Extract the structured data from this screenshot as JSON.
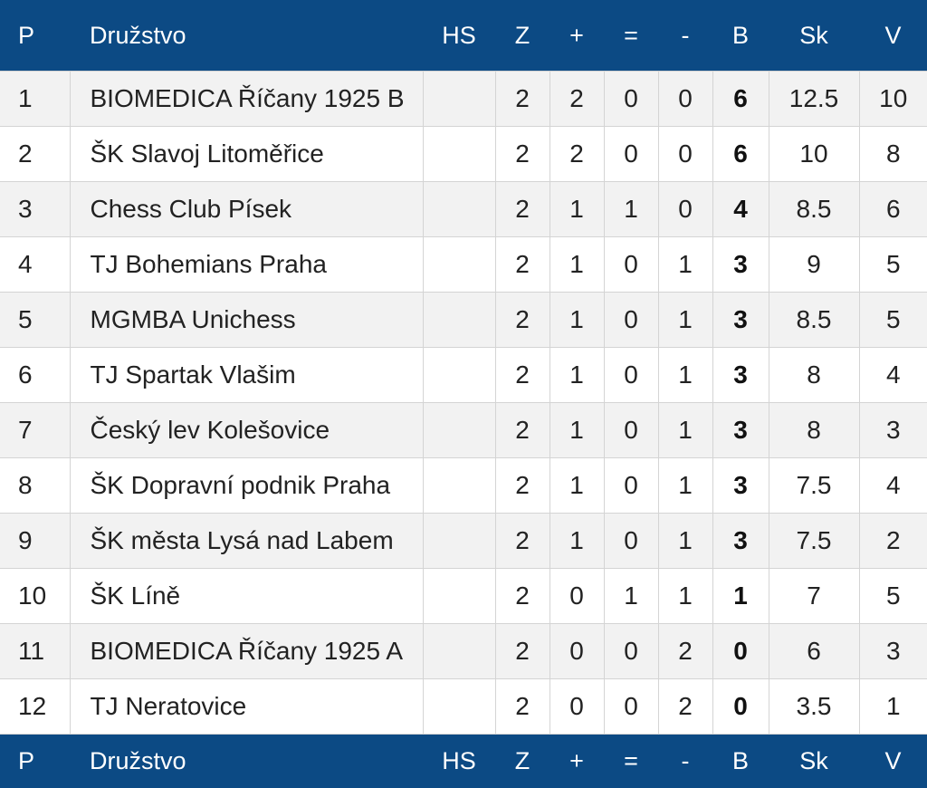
{
  "header": {
    "p": "P",
    "team": "Družstvo",
    "hs": "HS",
    "z": "Z",
    "plus": "+",
    "eq": "=",
    "minus": "-",
    "b": "B",
    "sk": "Sk",
    "v": "V"
  },
  "rows": [
    {
      "p": "1",
      "team": "BIOMEDICA Říčany 1925 B",
      "hs": "",
      "z": "2",
      "plus": "2",
      "eq": "0",
      "minus": "0",
      "b": "6",
      "sk": "12.5",
      "v": "10"
    },
    {
      "p": "2",
      "team": "ŠK Slavoj Litoměřice",
      "hs": "",
      "z": "2",
      "plus": "2",
      "eq": "0",
      "minus": "0",
      "b": "6",
      "sk": "10",
      "v": "8"
    },
    {
      "p": "3",
      "team": "Chess Club Písek",
      "hs": "",
      "z": "2",
      "plus": "1",
      "eq": "1",
      "minus": "0",
      "b": "4",
      "sk": "8.5",
      "v": "6"
    },
    {
      "p": "4",
      "team": "TJ Bohemians Praha",
      "hs": "",
      "z": "2",
      "plus": "1",
      "eq": "0",
      "minus": "1",
      "b": "3",
      "sk": "9",
      "v": "5"
    },
    {
      "p": "5",
      "team": "MGMBA Unichess",
      "hs": "",
      "z": "2",
      "plus": "1",
      "eq": "0",
      "minus": "1",
      "b": "3",
      "sk": "8.5",
      "v": "5"
    },
    {
      "p": "6",
      "team": "TJ Spartak Vlašim",
      "hs": "",
      "z": "2",
      "plus": "1",
      "eq": "0",
      "minus": "1",
      "b": "3",
      "sk": "8",
      "v": "4"
    },
    {
      "p": "7",
      "team": "Český lev Kolešovice",
      "hs": "",
      "z": "2",
      "plus": "1",
      "eq": "0",
      "minus": "1",
      "b": "3",
      "sk": "8",
      "v": "3"
    },
    {
      "p": "8",
      "team": "ŠK Dopravní podnik Praha",
      "hs": "",
      "z": "2",
      "plus": "1",
      "eq": "0",
      "minus": "1",
      "b": "3",
      "sk": "7.5",
      "v": "4"
    },
    {
      "p": "9",
      "team": "ŠK města Lysá nad Labem",
      "hs": "",
      "z": "2",
      "plus": "1",
      "eq": "0",
      "minus": "1",
      "b": "3",
      "sk": "7.5",
      "v": "2"
    },
    {
      "p": "10",
      "team": "ŠK Líně",
      "hs": "",
      "z": "2",
      "plus": "0",
      "eq": "1",
      "minus": "1",
      "b": "1",
      "sk": "7",
      "v": "5"
    },
    {
      "p": "11",
      "team": "BIOMEDICA Říčany 1925 A",
      "hs": "",
      "z": "2",
      "plus": "0",
      "eq": "0",
      "minus": "2",
      "b": "0",
      "sk": "6",
      "v": "3"
    },
    {
      "p": "12",
      "team": "TJ Neratovice",
      "hs": "",
      "z": "2",
      "plus": "0",
      "eq": "0",
      "minus": "2",
      "b": "0",
      "sk": "3.5",
      "v": "1"
    }
  ],
  "colors": {
    "header_bg": "#0c4a84",
    "row_odd": "#f2f2f2",
    "row_even": "#ffffff",
    "border": "#d4d4d4"
  }
}
